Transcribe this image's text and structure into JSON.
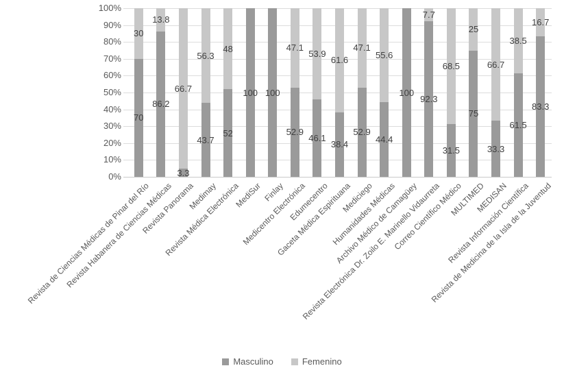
{
  "chart_data": {
    "type": "bar",
    "stacked": true,
    "stacking": "percent",
    "title": "",
    "xlabel": "",
    "ylabel": "",
    "ylim": [
      0,
      100
    ],
    "ytick_labels": [
      "0%",
      "10%",
      "20%",
      "30%",
      "40%",
      "50%",
      "60%",
      "70%",
      "80%",
      "90%",
      "100%"
    ],
    "grid": true,
    "legend_position": "bottom",
    "categories": [
      "Revista de Ciencias Médicas de Pinar del Río",
      "Revista Habanera de Ciencias Médicas",
      "Revista Panorama",
      "Medimay",
      "Revista Médica Electrónica",
      "MediSur",
      "Finlay",
      "Medicentro Electrónica",
      "Edumecentro",
      "Gaceta Médica Espirituana",
      "Mediciego",
      "Humanidades Médicas",
      "Archivo Médico de Camagüey",
      "Revista Electrónica Dr. Zoilo E. Marinello Vidaurreta",
      "Correo Científico Médico",
      "MULTIMED",
      "MEDISAN",
      "Revista Información Científica",
      "Revista de Medicina de la Isla de la Juventud"
    ],
    "series": [
      {
        "name": "Masculino",
        "color": "#9a9a9a",
        "values": [
          70,
          86.2,
          3.3,
          43.7,
          52,
          100,
          100,
          52.9,
          46.1,
          38.4,
          52.9,
          44.4,
          100,
          92.3,
          31.5,
          75,
          33.3,
          61.5,
          83.3
        ]
      },
      {
        "name": "Femenino",
        "color": "#c7c7c7",
        "values": [
          30,
          13.8,
          66.7,
          56.3,
          48,
          0,
          0,
          47.1,
          53.9,
          61.6,
          47.1,
          55.6,
          0,
          7.7,
          68.5,
          25,
          66.7,
          38.5,
          16.7
        ]
      }
    ]
  },
  "colors": {
    "background": "#ffffff",
    "gridline": "#dcdcdc",
    "axis_line": "#c9c9c9",
    "tick_text": "#595959",
    "data_label_text": "#3f3f3f",
    "masculino": "#9a9a9a",
    "femenino": "#c7c7c7"
  }
}
